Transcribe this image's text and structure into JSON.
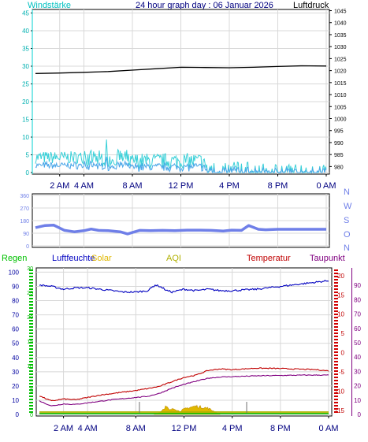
{
  "title": "24 hour graph day : 06 Januar 2026",
  "colors": {
    "wind": "#00e0e0",
    "gust": "#39d0d8",
    "wind_avg": "#4aa6e8",
    "pressure": "#000000",
    "direction": "#6f7fe8",
    "humidity": "#0000c0",
    "temperature": "#c00000",
    "dewpoint": "#800080",
    "rain": "#00c000",
    "solar": "#e0b800",
    "aqi": "#b0b000",
    "grid": "#d8d8d8",
    "axis_text": "#333333"
  },
  "chart_data": [
    {
      "type": "line",
      "name": "wind-pressure",
      "labels": {
        "left": "Windstärke",
        "right": "Luftdruck"
      },
      "x_ticks": [
        "2 AM",
        "4 AM",
        "8 AM",
        "12 PM",
        "4 PM",
        "8 PM",
        "0 AM"
      ],
      "x_tick_hours": [
        2,
        4,
        8,
        12,
        16,
        20,
        24
      ],
      "x_range": [
        0,
        24
      ],
      "left_axis": {
        "range": [
          0,
          46
        ],
        "ticks": [
          0,
          5,
          10,
          15,
          20,
          25,
          30,
          35,
          40,
          45
        ]
      },
      "right_axis": {
        "range": [
          977.5,
          1045.5
        ],
        "ticks": [
          980,
          985,
          990,
          995,
          1000,
          1005,
          1010,
          1015,
          1020,
          1025,
          1030,
          1035,
          1040,
          1045
        ]
      },
      "pressure": {
        "x": [
          0,
          2,
          4,
          6,
          8,
          10,
          12,
          14,
          16,
          18,
          20,
          22,
          24
        ],
        "y": [
          1018.8,
          1019.0,
          1019.3,
          1019.6,
          1020.2,
          1020.8,
          1021.4,
          1021.3,
          1021.2,
          1021.4,
          1021.7,
          1022.0,
          1021.9
        ]
      },
      "wind_note": "gust and wind speed between 0 and 9, mostly 0 to 5"
    },
    {
      "type": "line",
      "name": "wind-direction",
      "labels": {
        "right": [
          "N",
          "W",
          "S",
          "O",
          "N"
        ]
      },
      "x_range": [
        0,
        24
      ],
      "left_axis": {
        "range": [
          0,
          360
        ],
        "ticks": [
          0,
          90,
          180,
          270,
          360
        ]
      },
      "direction": {
        "x": [
          0,
          0.8,
          1.5,
          2.4,
          3.2,
          4.0,
          4.6,
          5.2,
          6.0,
          7.0,
          7.6,
          8.0,
          8.6,
          9.5,
          10.5,
          11.5,
          12.5,
          13.5,
          14.5,
          15.5,
          16.2,
          17.0,
          17.6,
          18.4,
          19.0,
          20.0,
          22.0,
          24.0
        ],
        "y": [
          130,
          145,
          148,
          110,
          100,
          108,
          120,
          110,
          108,
          100,
          85,
          95,
          110,
          108,
          110,
          108,
          112,
          112,
          110,
          105,
          112,
          110,
          145,
          118,
          115,
          118,
          118,
          118
        ]
      }
    },
    {
      "type": "line",
      "name": "temperature-humidity",
      "labels": {
        "rain": "Regen",
        "humidity": "Luftfeuchte",
        "solar": "Solar",
        "aqi": "AQI",
        "temperature": "Temperatur",
        "dewpoint": "Taupunkt"
      },
      "x_ticks": [
        "2 AM",
        "4 AM",
        "8 AM",
        "12 PM",
        "4 PM",
        "8 PM",
        "0 AM"
      ],
      "x_tick_hours": [
        2,
        4,
        8,
        12,
        16,
        20,
        24
      ],
      "x_range": [
        0,
        24
      ],
      "humidity_axis": {
        "range": [
          0,
          103
        ],
        "ticks": [
          0,
          10,
          20,
          30,
          40,
          50,
          60,
          70,
          80,
          90,
          100
        ]
      },
      "rain_axis": {
        "range": [
          0,
          30
        ],
        "ticks": [
          0,
          5,
          10,
          15,
          20,
          25,
          30
        ]
      },
      "temperature_axis": {
        "range": [
          -16,
          22
        ],
        "ticks": [
          -15,
          -10,
          -5,
          0,
          5,
          10,
          15,
          20
        ]
      },
      "dewpoint_axis": {
        "range": [
          0,
          100
        ],
        "ticks": [
          0,
          10,
          20,
          30,
          40,
          50,
          60,
          70,
          80,
          90
        ]
      },
      "humidity": {
        "x": [
          0,
          1,
          2,
          3,
          4,
          5,
          6,
          7,
          8,
          9,
          9.6,
          10,
          10.6,
          11,
          12,
          13,
          14,
          15,
          16,
          18,
          20,
          22,
          23,
          24
        ],
        "y": [
          91,
          90,
          88,
          89,
          89,
          88,
          87,
          86,
          86,
          87,
          91,
          90,
          87,
          86,
          88,
          87,
          88,
          87,
          87,
          88,
          90,
          92,
          93,
          94
        ]
      },
      "temperature": {
        "x": [
          0,
          1,
          2,
          3,
          4,
          5,
          6,
          7,
          8,
          9,
          10,
          11,
          12,
          13,
          14,
          15,
          16,
          17,
          18,
          20,
          22,
          23,
          24
        ],
        "y": [
          -11.2,
          -12.5,
          -12.0,
          -12.2,
          -11.6,
          -11.0,
          -10.6,
          -10.2,
          -9.8,
          -9.3,
          -8.7,
          -7.5,
          -6.4,
          -5.8,
          -4.6,
          -4.2,
          -4.4,
          -4.2,
          -4.0,
          -4.1,
          -4.3,
          -4.4,
          -4.7
        ]
      },
      "dewpoint": {
        "x": [
          0,
          1,
          2,
          3,
          4,
          5,
          6,
          7,
          8,
          9,
          10,
          11,
          12,
          13,
          14,
          15,
          16,
          17,
          18,
          20,
          22,
          24
        ],
        "y": [
          -12.5,
          -13.8,
          -13.3,
          -13.4,
          -13.0,
          -12.6,
          -12.2,
          -11.9,
          -11.6,
          -11.3,
          -10.5,
          -9.2,
          -8.2,
          -7.4,
          -6.6,
          -6.3,
          -6.2,
          -6.1,
          -6.0,
          -5.9,
          -5.8,
          -5.8
        ]
      },
      "solar": {
        "x": [
          9.5,
          10.0,
          10.5,
          10.8,
          11.2,
          11.6,
          12.0,
          12.5,
          13.0,
          13.5,
          14.0,
          14.5,
          15.0
        ],
        "y": [
          0,
          2,
          8,
          4,
          6,
          3,
          5,
          7,
          8,
          7,
          6,
          3,
          0
        ]
      }
    }
  ]
}
